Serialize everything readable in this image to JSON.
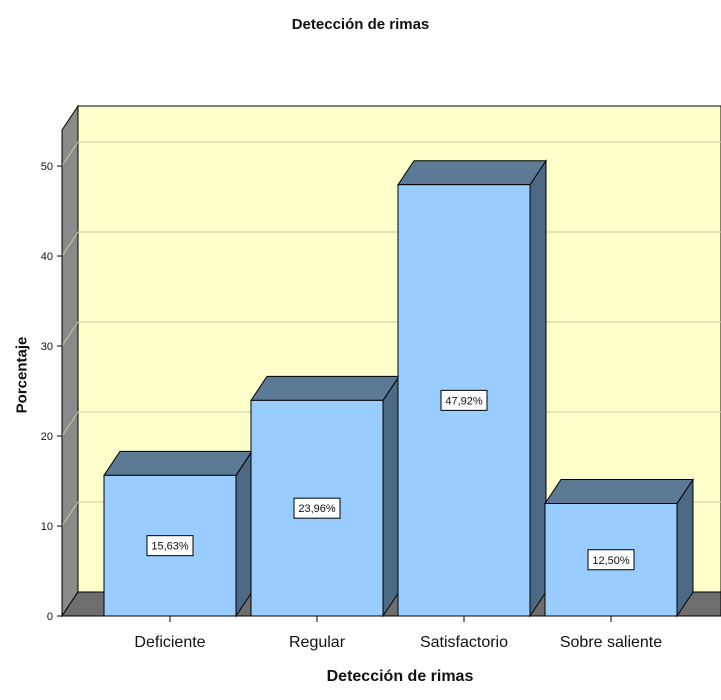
{
  "chart_data": {
    "type": "bar",
    "title": "Detección de rimas",
    "xlabel": "Detección de rimas",
    "ylabel": "Porcentaje",
    "categories": [
      "Deficiente",
      "Regular",
      "Satisfactorio",
      "Sobre saliente"
    ],
    "values": [
      15.63,
      23.96,
      47.92,
      12.5
    ],
    "data_labels": [
      "15,63%",
      "23,96%",
      "47,92%",
      "12,50%"
    ],
    "yticks": [
      "0",
      "10",
      "20",
      "30",
      "40",
      "50"
    ],
    "ylim": [
      0,
      50
    ],
    "grid": true,
    "legend": "none",
    "style": "3d",
    "colors": {
      "bar_front": "#99ccff",
      "bar_top": "#5c7a96",
      "bar_side": "#4d6a85",
      "back_wall": "#ffffcc",
      "side_wall": "#8a8a8a",
      "floor": "#6e6e6e",
      "gridline": "#c8c8a6"
    }
  }
}
